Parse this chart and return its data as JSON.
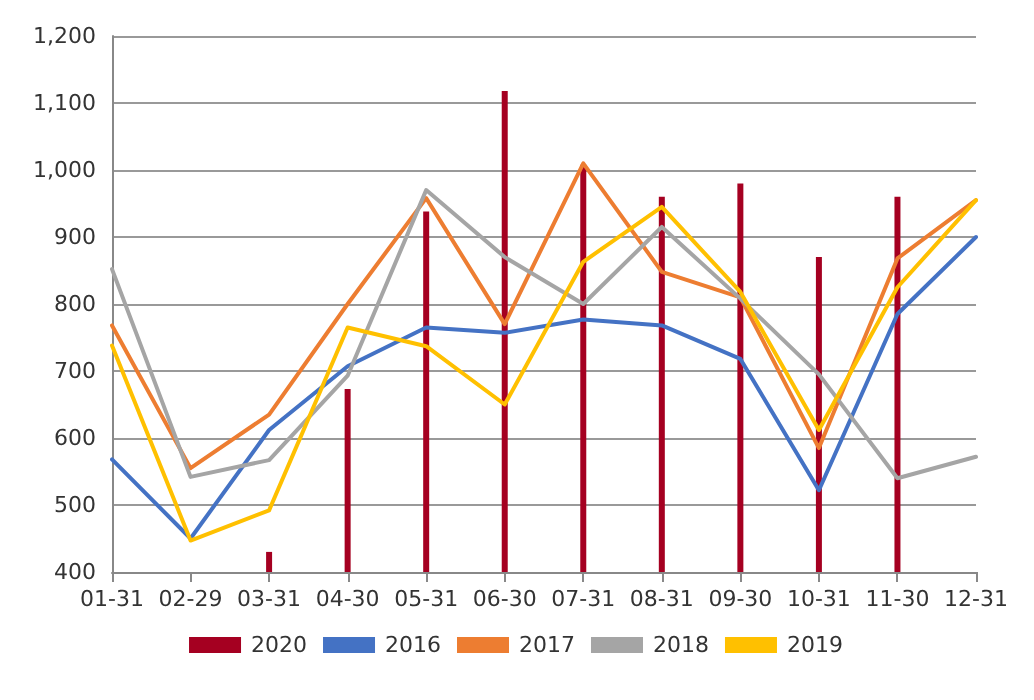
{
  "chart_data": {
    "type": "line",
    "categories": [
      "01-31",
      "02-29",
      "03-31",
      "04-30",
      "05-31",
      "06-30",
      "07-31",
      "08-31",
      "09-30",
      "10-31",
      "11-30",
      "12-31"
    ],
    "series": [
      {
        "name": "2020",
        "type": "bar",
        "color": "#a50021",
        "values": [
          null,
          null,
          430,
          673,
          938,
          1118,
          1008,
          960,
          980,
          870,
          960,
          null
        ]
      },
      {
        "name": "2016",
        "color": "#4472c4",
        "values": [
          568,
          450,
          612,
          707,
          765,
          757,
          777,
          768,
          718,
          522,
          785,
          900
        ]
      },
      {
        "name": "2017",
        "color": "#ed7d31",
        "values": [
          768,
          555,
          635,
          800,
          958,
          770,
          1010,
          848,
          810,
          585,
          868,
          955
        ]
      },
      {
        "name": "2018",
        "color": "#a5a5a5",
        "values": [
          852,
          542,
          567,
          693,
          970,
          870,
          800,
          915,
          808,
          695,
          540,
          572
        ]
      },
      {
        "name": "2019",
        "color": "#ffc000",
        "values": [
          738,
          447,
          492,
          765,
          737,
          650,
          863,
          945,
          818,
          612,
          825,
          955
        ]
      }
    ],
    "ylim": [
      400,
      1200
    ],
    "yticks": [
      400,
      500,
      600,
      700,
      800,
      900,
      {
        "value": 1000,
        "label": "1,000"
      },
      {
        "value": 1100,
        "label": "1,100"
      },
      {
        "value": 1200,
        "label": "1,200"
      }
    ],
    "grid": "y",
    "legend": "bottom",
    "marker": "none",
    "line_style": "solid"
  }
}
